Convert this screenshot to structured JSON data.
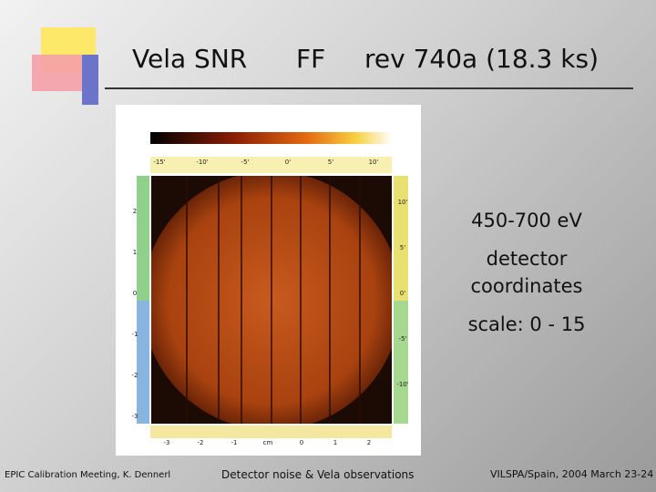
{
  "title": {
    "target": "Vela SNR",
    "mode": "FF",
    "observation": "rev 740a  (18.3 ks)"
  },
  "image": {
    "top_axis": [
      "-15'",
      "-10'",
      "-5'",
      "0'",
      "5'",
      "10'"
    ],
    "right_axis": [
      "10'",
      "5'",
      "0'",
      "-5'",
      "-10'"
    ],
    "left_axis": [
      "2",
      "1",
      "0",
      "-1",
      "-2",
      "-3"
    ],
    "bottom_axis": [
      "-3",
      "-2",
      "-1",
      "cm",
      "0",
      "1",
      "2"
    ]
  },
  "annotations": {
    "energy": "450-700 eV",
    "detector": "detector",
    "coordinates": "coordinates",
    "scale": "scale: 0 - 15"
  },
  "footer": {
    "left": "EPIC Calibration Meeting, K. Dennerl",
    "center": "Detector noise & Vela observations",
    "right": "VILSPA/Spain, 2004 March 23-24"
  }
}
